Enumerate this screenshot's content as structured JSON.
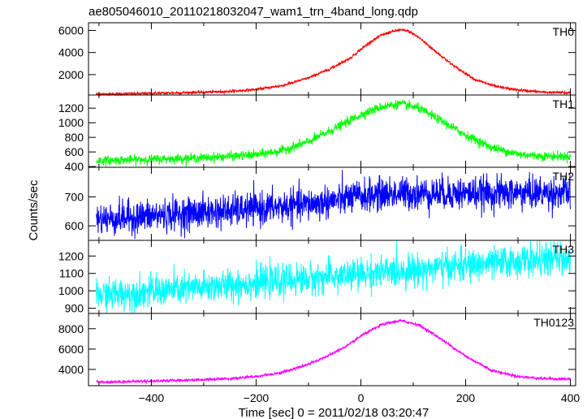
{
  "chart_data": {
    "type": "line",
    "title": "ae805046010_20110218032047_wam1_trn_4band_long.qdp",
    "xlabel": "Time [sec] 0 = 2011/02/18 03:20:47",
    "ylabel": "Counts/sec",
    "xlim": [
      -520,
      410
    ],
    "x_ticks": [
      -400,
      -200,
      0,
      200,
      400
    ],
    "x_data_range": [
      -505,
      400
    ],
    "panels": [
      {
        "name": "TH0",
        "color": "#ff0000",
        "ylim": [
          150,
          6700
        ],
        "y_ticks": [
          2000,
          4000,
          6000
        ],
        "noise": 60,
        "series": {
          "x": [
            -505,
            -400,
            -300,
            -250,
            -200,
            -150,
            -100,
            -60,
            -20,
            0,
            20,
            40,
            60,
            75,
            90,
            110,
            140,
            180,
            220,
            260,
            300,
            350,
            400
          ],
          "y": [
            220,
            300,
            400,
            480,
            650,
            1000,
            1700,
            2500,
            3500,
            4300,
            5000,
            5600,
            5900,
            6050,
            5950,
            5400,
            4200,
            2700,
            1500,
            900,
            600,
            400,
            350
          ]
        }
      },
      {
        "name": "TH1",
        "color": "#00ff00",
        "ylim": [
          390,
          1380
        ],
        "y_ticks": [
          400,
          600,
          800,
          1000,
          1200
        ],
        "noise": 30,
        "series": {
          "x": [
            -505,
            -400,
            -300,
            -200,
            -150,
            -100,
            -50,
            0,
            40,
            75,
            110,
            150,
            200,
            250,
            300,
            350,
            400
          ],
          "y": [
            480,
            500,
            520,
            560,
            620,
            740,
            920,
            1110,
            1220,
            1260,
            1200,
            1040,
            830,
            660,
            570,
            540,
            540
          ]
        }
      },
      {
        "name": "TH2",
        "color": "#0000ff",
        "ylim": [
          550,
          802
        ],
        "y_ticks": [
          600,
          700
        ],
        "noise": 28,
        "series": {
          "x": [
            -505,
            -400,
            -300,
            -200,
            -100,
            0,
            50,
            100,
            200,
            300,
            400
          ],
          "y": [
            622,
            634,
            646,
            658,
            674,
            702,
            710,
            712,
            712,
            713,
            714
          ]
        }
      },
      {
        "name": "TH3",
        "color": "#00ffff",
        "ylim": [
          870,
          1290
        ],
        "y_ticks": [
          900,
          1000,
          1100,
          1200
        ],
        "noise": 45,
        "series": {
          "x": [
            -505,
            -400,
            -300,
            -200,
            -100,
            0,
            100,
            200,
            300,
            400
          ],
          "y": [
            975,
            995,
            1020,
            1045,
            1070,
            1095,
            1120,
            1145,
            1170,
            1190
          ]
        }
      },
      {
        "name": "TH0123",
        "color": "#ff00ff",
        "ylim": [
          2400,
          9500
        ],
        "y_ticks": [
          4000,
          6000,
          8000
        ],
        "noise": 70,
        "series": {
          "x": [
            -505,
            -400,
            -300,
            -250,
            -200,
            -150,
            -100,
            -60,
            -20,
            0,
            40,
            75,
            110,
            150,
            200,
            250,
            300,
            350,
            400
          ],
          "y": [
            2750,
            2850,
            3000,
            3100,
            3300,
            3700,
            4500,
            5400,
            6500,
            7300,
            8400,
            8800,
            8400,
            7100,
            5300,
            3900,
            3300,
            3100,
            3050
          ]
        }
      }
    ]
  }
}
